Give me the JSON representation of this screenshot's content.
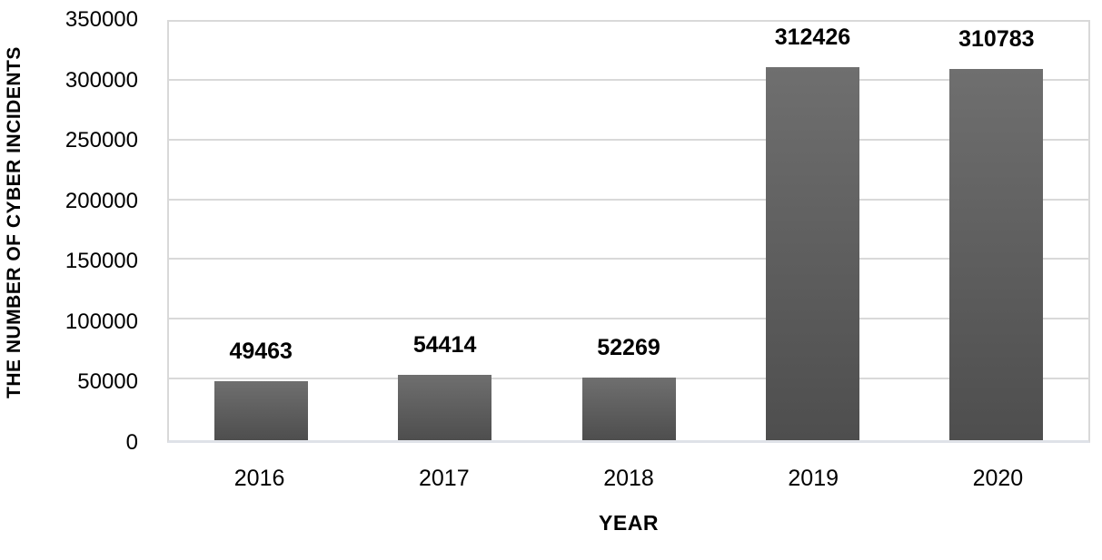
{
  "chart_data": {
    "type": "bar",
    "title": "",
    "categories": [
      "2016",
      "2017",
      "2018",
      "2019",
      "2020"
    ],
    "values": [
      49463,
      54414,
      52269,
      312426,
      310783
    ],
    "data_labels": [
      "49463",
      "54414",
      "52269",
      "312426",
      "310783"
    ],
    "xlabel": "YEAR",
    "ylabel": "THE NUMBER OF CYBER INCIDENTS",
    "ylim": [
      0,
      350000
    ],
    "yticks": [
      0,
      50000,
      100000,
      150000,
      200000,
      250000,
      300000,
      350000
    ],
    "ytick_labels": [
      "0",
      "50000",
      "100000",
      "150000",
      "200000",
      "250000",
      "300000",
      "350000"
    ],
    "grid": "on",
    "legend": "none",
    "bar_color_top": "#6f6f6f",
    "bar_color_bottom": "#4e4e4e",
    "gridline_color": "#d9d9d9",
    "label_color": "#000000"
  }
}
